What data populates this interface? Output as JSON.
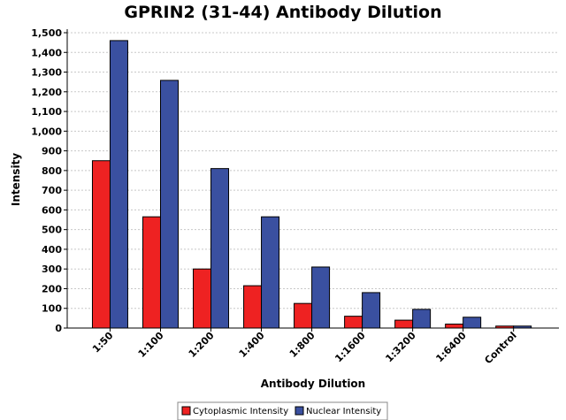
{
  "chart_data": {
    "type": "bar",
    "title": "GPRIN2 (31-44) Antibody Dilution",
    "xlabel": "Antibody Dilution",
    "ylabel": "Intensity",
    "categories": [
      "1:50",
      "1:100",
      "1:200",
      "1:400",
      "1:800",
      "1:1600",
      "1:3200",
      "1:6400",
      "Control"
    ],
    "series": [
      {
        "name": "Cytoplasmic Intensity",
        "color": "#ee2222",
        "values": [
          850,
          565,
          300,
          215,
          125,
          60,
          40,
          20,
          10
        ]
      },
      {
        "name": "Nuclear Intensity",
        "color": "#3a50a0",
        "values": [
          1460,
          1258,
          810,
          565,
          310,
          180,
          95,
          55,
          10
        ]
      }
    ],
    "ylim": [
      0,
      1500
    ],
    "yticks": [
      0,
      100,
      200,
      300,
      400,
      500,
      600,
      700,
      800,
      900,
      1000,
      1100,
      1200,
      1300,
      1400,
      1500
    ],
    "ytick_labels": [
      "0",
      "100",
      "200",
      "300",
      "400",
      "500",
      "600",
      "700",
      "800",
      "900",
      "1,000",
      "1,100",
      "1,200",
      "1,300",
      "1,400",
      "1,500"
    ],
    "grid": true,
    "legend_position": "bottom"
  }
}
